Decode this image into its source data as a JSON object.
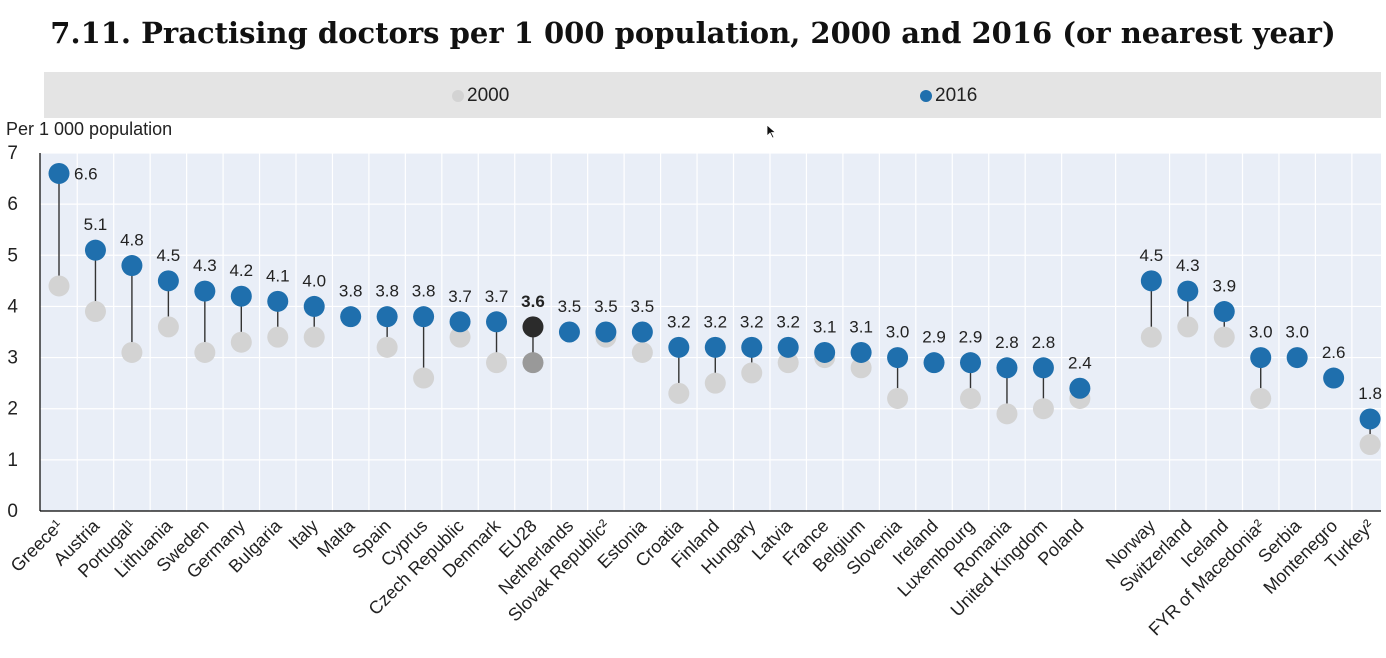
{
  "title": "7.11. Practising doctors per 1 000 population, 2000 and 2016 (or nearest year)",
  "legend": [
    {
      "label": "2000",
      "color": "#d3d3d3"
    },
    {
      "label": "2016",
      "color": "#1f6fad"
    }
  ],
  "colors": {
    "plot_background": "#e9eef7",
    "grid": "#ffffff",
    "y2000": "#d3d3d3",
    "y2016": "#1f6fad",
    "eu_2016": "#2b2b2b",
    "eu_2000": "#999999",
    "stem": "#333333"
  },
  "cursor_icon": "mouse-pointer-icon",
  "chart_data": {
    "type": "dot",
    "ylabel": "Per 1 000 population",
    "ylim": [
      0,
      7
    ],
    "yticks": [
      0,
      1,
      2,
      3,
      4,
      5,
      6,
      7
    ],
    "grid": true,
    "legend_position": "top",
    "categories": [
      "Greece¹",
      "Austria",
      "Portugal¹",
      "Lithuania",
      "Sweden",
      "Germany",
      "Bulgaria",
      "Italy",
      "Malta",
      "Spain",
      "Cyprus",
      "Czech Republic",
      "Denmark",
      "EU28",
      "Netherlands",
      "Slovak Republic²",
      "Estonia",
      "Croatia",
      "Finland",
      "Hungary",
      "Latvia",
      "France",
      "Belgium",
      "Slovenia",
      "Ireland",
      "Luxembourg",
      "Romania",
      "United Kingdom",
      "Poland",
      "Norway",
      "Switzerland",
      "Iceland",
      "FYR of Macedonia²",
      "Serbia",
      "Montenegro",
      "Turkey²"
    ],
    "highlight": "EU28",
    "series": [
      {
        "name": "2000",
        "values": [
          4.4,
          3.9,
          3.1,
          3.6,
          3.1,
          3.3,
          3.4,
          3.4,
          null,
          3.2,
          2.6,
          3.4,
          2.9,
          2.9,
          null,
          3.4,
          3.1,
          2.3,
          2.5,
          2.7,
          2.9,
          3.0,
          2.8,
          2.2,
          null,
          2.2,
          1.9,
          2.0,
          2.2,
          3.4,
          3.6,
          3.4,
          2.2,
          null,
          null,
          1.3
        ]
      },
      {
        "name": "2016",
        "values": [
          6.6,
          5.1,
          4.8,
          4.5,
          4.3,
          4.2,
          4.1,
          4.0,
          3.8,
          3.8,
          3.8,
          3.7,
          3.7,
          3.6,
          3.5,
          3.5,
          3.5,
          3.2,
          3.2,
          3.2,
          3.2,
          3.1,
          3.1,
          3.0,
          2.9,
          2.9,
          2.8,
          2.8,
          2.4,
          4.5,
          4.3,
          3.9,
          3.0,
          3.0,
          2.6,
          1.8
        ]
      }
    ],
    "value_labels": [
      "6.6",
      "5.1",
      "4.8",
      "4.5",
      "4.3",
      "4.2",
      "4.1",
      "4.0",
      "3.8",
      "3.8",
      "3.8",
      "3.7",
      "3.7",
      "3.6",
      "3.5",
      "3.5",
      "3.5",
      "3.2",
      "3.2",
      "3.2",
      "3.2",
      "3.1",
      "3.1",
      "3.0",
      "2.9",
      "2.9",
      "2.8",
      "2.8",
      "2.4",
      "4.5",
      "4.3",
      "3.9",
      "3.0",
      "3.0",
      "2.6",
      "1.8"
    ]
  }
}
